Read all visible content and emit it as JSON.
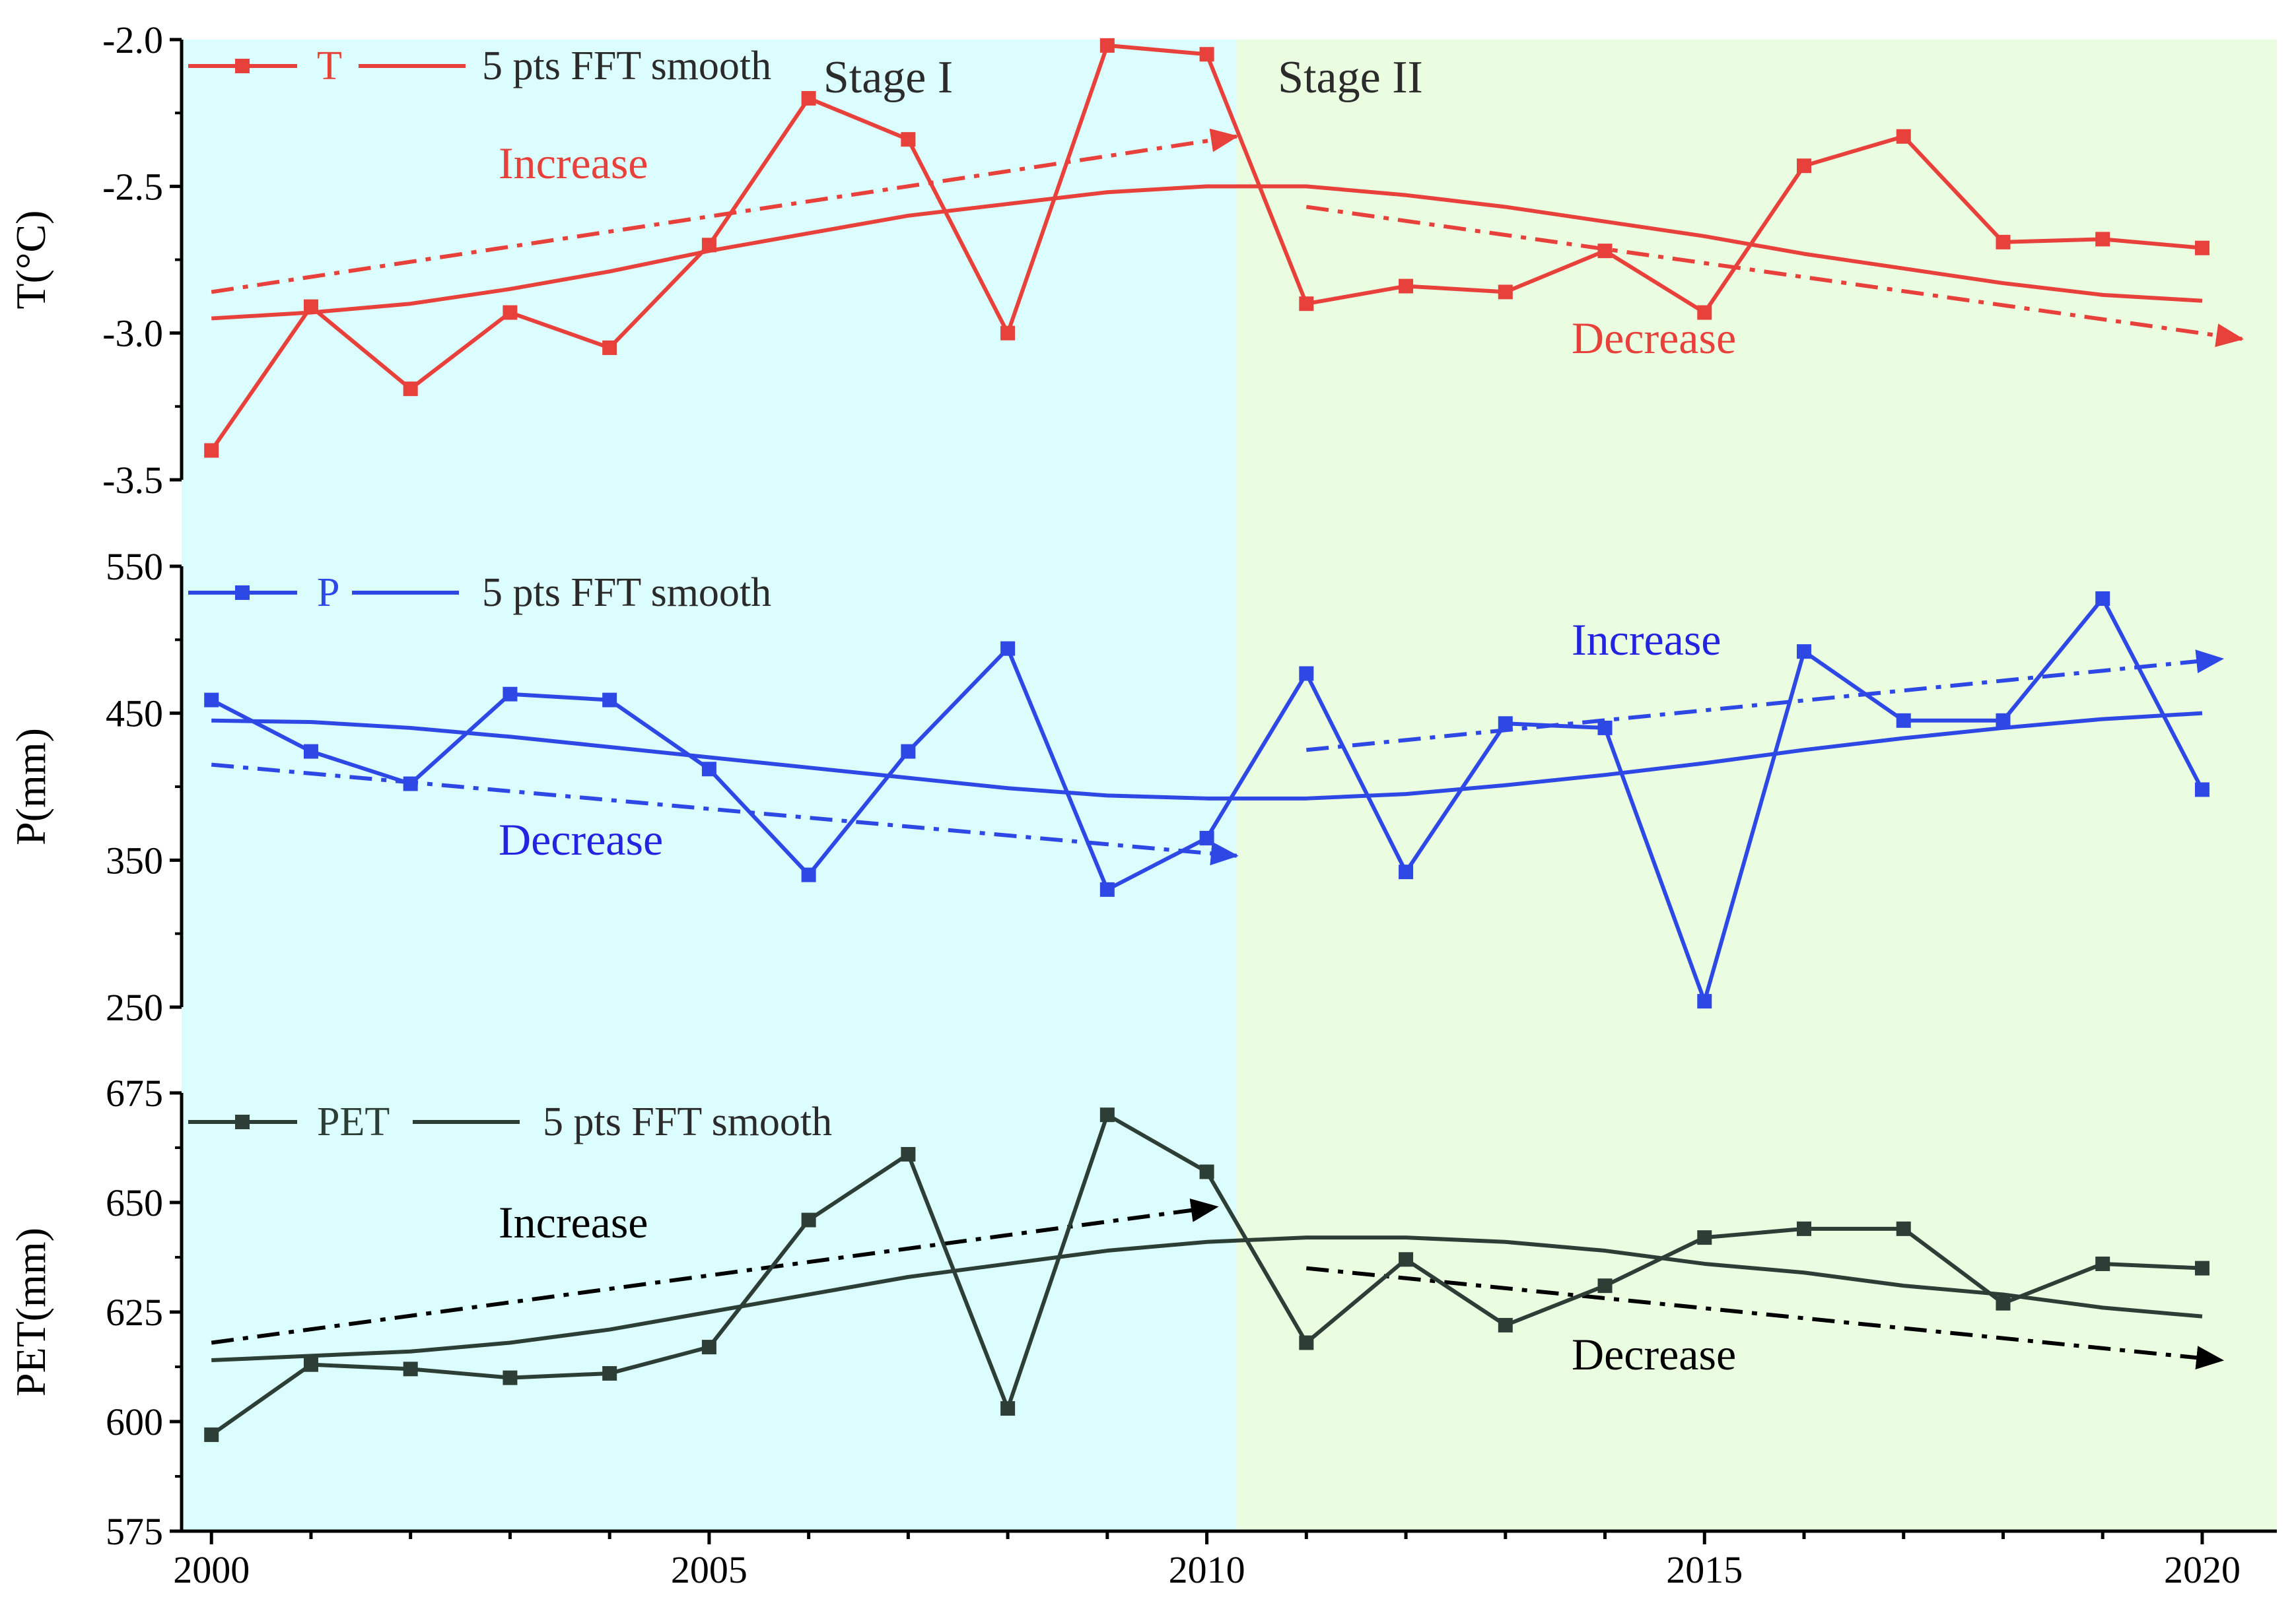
{
  "chart_data": {
    "type": "line",
    "x": [
      2000,
      2001,
      2002,
      2003,
      2004,
      2005,
      2006,
      2007,
      2008,
      2009,
      2010,
      2011,
      2012,
      2013,
      2014,
      2015,
      2016,
      2017,
      2018,
      2019,
      2020
    ],
    "xlim": [
      1999.7,
      2020.75
    ],
    "xticks": [
      2000,
      2005,
      2010,
      2015,
      2020
    ],
    "stage_split": 2010.3,
    "stages": [
      "Stage I",
      "Stage II"
    ],
    "colors": {
      "stage1_bg": "#dcfdfd",
      "stage2_bg": "#eafde1",
      "T": "#e8403a",
      "T_annot": "#e8403a",
      "P": "#2e48e6",
      "P_annot": "#2424e0",
      "PET": "#2c3e36",
      "PET_arrow": "#000000",
      "PET_annot": "#000000"
    },
    "panels": [
      {
        "id": "T",
        "ylabel": "T(°C)",
        "ylim": [
          -3.5,
          -2.0
        ],
        "yticks": [
          -3.5,
          -3.0,
          -2.5,
          -2.0
        ],
        "ytick_labels": [
          "-3.5",
          "-3.0",
          "-2.5",
          "-2.0"
        ],
        "legend": [
          "T",
          "5 pts FFT smooth"
        ],
        "values": [
          -3.4,
          -2.91,
          -3.19,
          -2.93,
          -3.05,
          -2.7,
          -2.2,
          -2.34,
          -3.0,
          -2.02,
          -2.05,
          -2.9,
          -2.84,
          -2.86,
          -2.72,
          -2.93,
          -2.43,
          -2.33,
          -2.69,
          -2.68,
          -2.71
        ],
        "smooth": [
          -2.95,
          -2.93,
          -2.9,
          -2.85,
          -2.79,
          -2.72,
          -2.66,
          -2.6,
          -2.56,
          -2.52,
          -2.5,
          -2.5,
          -2.53,
          -2.57,
          -2.62,
          -2.67,
          -2.73,
          -2.78,
          -2.83,
          -2.87,
          -2.89
        ],
        "trends": [
          {
            "label": "Increase",
            "from": [
              2000,
              -2.86
            ],
            "to": [
              2010.3,
              -2.33
            ]
          },
          {
            "label": "Decrease",
            "from": [
              2011,
              -2.57
            ],
            "to": [
              2020.4,
              -3.02
            ]
          }
        ]
      },
      {
        "id": "P",
        "ylabel": "P(mm)",
        "ylim": [
          250,
          550
        ],
        "yticks": [
          250,
          350,
          450,
          550
        ],
        "ytick_labels": [
          "250",
          "350",
          "450",
          "550"
        ],
        "legend": [
          "P",
          "5 pts FFT smooth"
        ],
        "values": [
          459,
          424,
          402,
          463,
          459,
          412,
          340,
          424,
          494,
          330,
          365,
          477,
          342,
          443,
          440,
          254,
          492,
          445,
          445,
          528,
          398
        ],
        "smooth": [
          445,
          444,
          440,
          434,
          427,
          420,
          413,
          406,
          399,
          394,
          392,
          392,
          395,
          401,
          408,
          416,
          425,
          433,
          440,
          446,
          450
        ],
        "trends": [
          {
            "label": "Decrease",
            "from": [
              2000,
              415
            ],
            "to": [
              2010.3,
              353
            ]
          },
          {
            "label": "Increase",
            "from": [
              2011,
              425
            ],
            "to": [
              2020.2,
              487
            ]
          }
        ]
      },
      {
        "id": "PET",
        "ylabel": "PET(mm)",
        "ylim": [
          575,
          675
        ],
        "yticks": [
          575,
          600,
          625,
          650,
          675
        ],
        "ytick_labels": [
          "575",
          "600",
          "625",
          "650",
          "675"
        ],
        "legend": [
          "PET",
          "5 pts FFT smooth"
        ],
        "values": [
          597,
          613,
          612,
          610,
          611,
          617,
          646,
          661,
          603,
          670,
          657,
          618,
          637,
          622,
          631,
          642,
          644,
          644,
          627,
          636,
          635
        ],
        "smooth": [
          614,
          615,
          616,
          618,
          621,
          625,
          629,
          633,
          636,
          639,
          641,
          642,
          642,
          641,
          639,
          636,
          634,
          631,
          629,
          626,
          624
        ],
        "trends": [
          {
            "label": "Increase",
            "from": [
              2000,
              618
            ],
            "to": [
              2010.1,
              649
            ]
          },
          {
            "label": "Decrease",
            "from": [
              2011,
              635
            ],
            "to": [
              2020.2,
              614
            ]
          }
        ]
      }
    ]
  }
}
